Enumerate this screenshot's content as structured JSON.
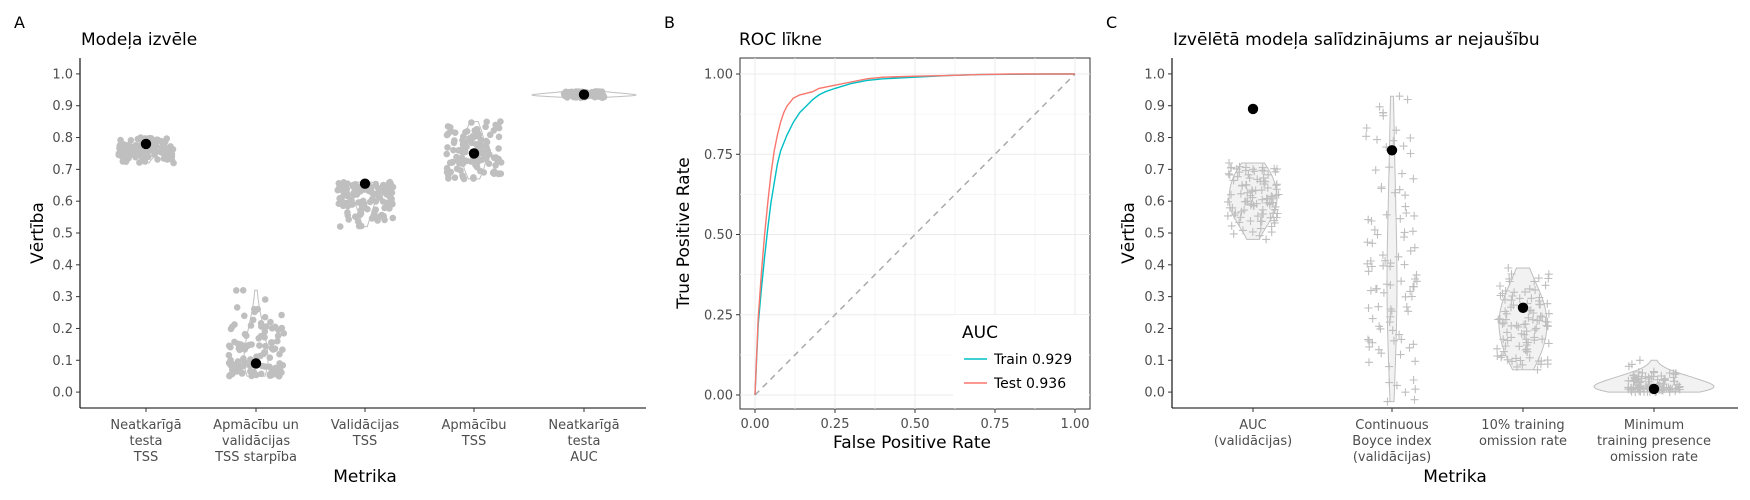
{
  "panel_tags": {
    "a": "A",
    "b": "B",
    "c": "C"
  },
  "colors": {
    "point_grey": "#bfbfbf",
    "highlight": "#000000",
    "train": "#00bfc4",
    "test": "#f8766d",
    "diag": "#aaaaaa"
  },
  "chart_data": [
    {
      "id": "A",
      "type": "scatter",
      "title": "Modeļa izvēle",
      "xlabel": "Metrika",
      "ylabel": "Vērtība",
      "ylim": [
        -0.05,
        1.05
      ],
      "yticks": [
        "0.0",
        "0.1",
        "0.2",
        "0.3",
        "0.4",
        "0.5",
        "0.6",
        "0.7",
        "0.8",
        "0.9",
        "1.0"
      ],
      "grid": false,
      "categories": [
        [
          "Neatkarīgā",
          "testa",
          "TSS"
        ],
        [
          "Apmācību un",
          "validācijas",
          "TSS starpība"
        ],
        [
          "Validācijas",
          "TSS"
        ],
        [
          "Apmācību",
          "TSS"
        ],
        [
          "Neatkarīgā",
          "testa",
          "AUC"
        ]
      ],
      "distributions": [
        {
          "min": 0.72,
          "max": 0.8,
          "center": 0.76,
          "n": 110
        },
        {
          "min": 0.05,
          "max": 0.32,
          "center": 0.12,
          "n": 110
        },
        {
          "min": 0.52,
          "max": 0.66,
          "center": 0.61,
          "n": 110
        },
        {
          "min": 0.67,
          "max": 0.85,
          "center": 0.75,
          "n": 110
        },
        {
          "min": 0.925,
          "max": 0.945,
          "center": 0.935,
          "n": 110
        }
      ],
      "selected": [
        0.78,
        0.09,
        0.655,
        0.75,
        0.935
      ]
    },
    {
      "id": "B",
      "type": "line",
      "title": "ROC līkne",
      "xlabel": "False Positive Rate",
      "ylabel": "True Positive Rate",
      "xlim": [
        0,
        1
      ],
      "ylim": [
        0,
        1
      ],
      "xticks": [
        "0.00",
        "0.25",
        "0.50",
        "0.75",
        "1.00"
      ],
      "yticks": [
        "0.00",
        "0.25",
        "0.50",
        "0.75",
        "1.00"
      ],
      "grid": true,
      "legend": {
        "title": "AUC",
        "position": "bottom-right"
      },
      "series": [
        {
          "name": "Train 0.929",
          "color": "#00bfc4",
          "x": [
            0,
            0.01,
            0.02,
            0.03,
            0.04,
            0.05,
            0.06,
            0.07,
            0.08,
            0.1,
            0.12,
            0.14,
            0.16,
            0.18,
            0.2,
            0.22,
            0.25,
            0.3,
            0.35,
            0.4,
            0.5,
            0.6,
            0.7,
            0.8,
            0.9,
            1.0
          ],
          "y": [
            0,
            0.22,
            0.33,
            0.43,
            0.52,
            0.6,
            0.66,
            0.72,
            0.76,
            0.81,
            0.85,
            0.88,
            0.9,
            0.92,
            0.935,
            0.945,
            0.955,
            0.97,
            0.98,
            0.985,
            0.99,
            0.995,
            0.998,
            0.999,
            1.0,
            1.0
          ]
        },
        {
          "name": "Test 0.936",
          "color": "#f8766d",
          "x": [
            0,
            0.01,
            0.02,
            0.03,
            0.04,
            0.05,
            0.06,
            0.07,
            0.08,
            0.09,
            0.1,
            0.12,
            0.14,
            0.16,
            0.18,
            0.2,
            0.25,
            0.3,
            0.35,
            0.4,
            0.5,
            0.6,
            0.7,
            0.8,
            0.9,
            1.0
          ],
          "y": [
            0,
            0.24,
            0.38,
            0.5,
            0.6,
            0.69,
            0.76,
            0.81,
            0.85,
            0.88,
            0.9,
            0.925,
            0.935,
            0.94,
            0.945,
            0.955,
            0.965,
            0.975,
            0.985,
            0.99,
            0.993,
            0.995,
            0.998,
            1.0,
            1.0,
            1.0
          ]
        },
        {
          "name": "",
          "color": "#aaaaaa",
          "dashed": true,
          "x": [
            0,
            1
          ],
          "y": [
            0,
            1
          ]
        }
      ]
    },
    {
      "id": "C",
      "type": "scatter",
      "title": "Izvēlētā modeļa salīdzinājums ar nejaušību",
      "xlabel": "Metrika",
      "ylabel": "Vērtība",
      "ylim": [
        -0.05,
        1.05
      ],
      "yticks": [
        "0.0",
        "0.1",
        "0.2",
        "0.3",
        "0.4",
        "0.5",
        "0.6",
        "0.7",
        "0.8",
        "0.9",
        "1.0"
      ],
      "grid": false,
      "categories": [
        [
          "AUC",
          "(validācijas)"
        ],
        [
          "Continuous",
          "Boyce index",
          "(validācijas)"
        ],
        [
          "10% training",
          "omission rate"
        ],
        [
          "Minimum",
          "training presence",
          "omission rate"
        ]
      ],
      "distributions": [
        {
          "min": 0.48,
          "max": 0.72,
          "center": 0.6,
          "n": 100
        },
        {
          "min": -0.03,
          "max": 0.93,
          "center": 0.4,
          "n": 100
        },
        {
          "min": 0.07,
          "max": 0.39,
          "center": 0.22,
          "n": 100
        },
        {
          "min": 0.0,
          "max": 0.1,
          "center": 0.02,
          "n": 100
        }
      ],
      "selected": [
        0.89,
        0.76,
        0.265,
        0.01
      ]
    }
  ]
}
